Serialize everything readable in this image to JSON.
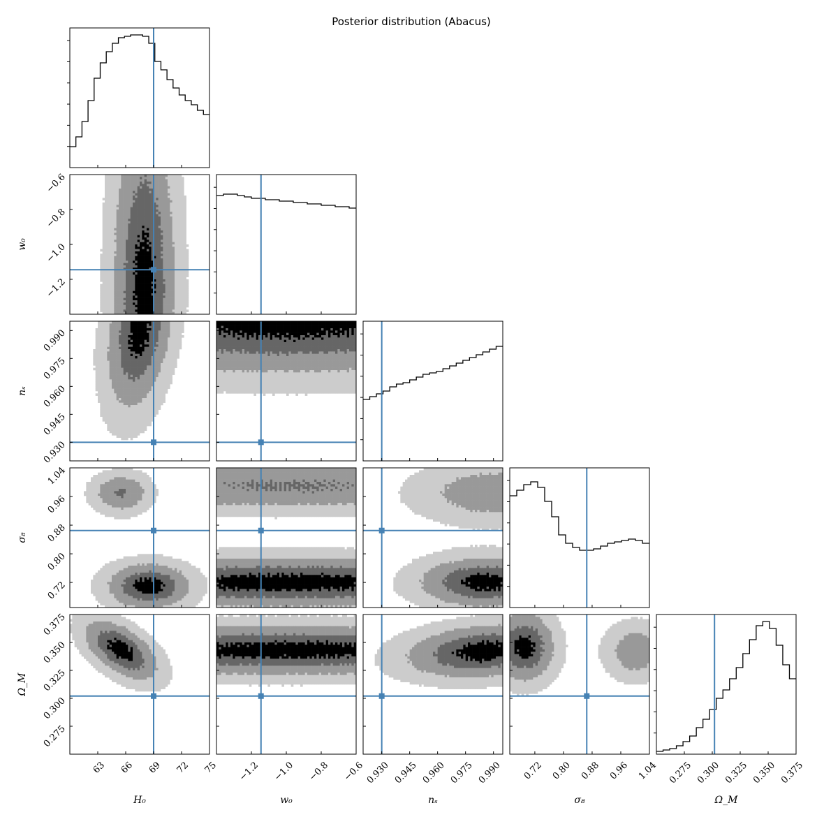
{
  "chart_data": {
    "type": "corner",
    "title": "Posterior distribution (Abacus)",
    "colors": {
      "truth": "#4682b4",
      "contour_levels": [
        "#cccccc",
        "#999999",
        "#666666",
        "#000000"
      ],
      "line": "#000000"
    },
    "params": [
      {
        "key": "H0",
        "label": "H₀",
        "range": [
          60,
          75
        ],
        "ticks": [
          63,
          66,
          69,
          72,
          75
        ],
        "tick_labels": [
          "63",
          "66",
          "69",
          "72",
          "75"
        ],
        "truth": 69.0
      },
      {
        "key": "w0",
        "label": "w₀",
        "range": [
          -1.4,
          -0.6
        ],
        "ticks": [
          -1.2,
          -1.0,
          -0.8,
          -0.6
        ],
        "tick_labels": [
          "−1.2",
          "−1.0",
          "−0.8",
          "−0.6"
        ],
        "truth": -1.145
      },
      {
        "key": "ns",
        "label": "nₛ",
        "range": [
          0.92,
          0.995
        ],
        "ticks": [
          0.93,
          0.945,
          0.96,
          0.975,
          0.99
        ],
        "tick_labels": [
          "0.930",
          "0.945",
          "0.960",
          "0.975",
          "0.990"
        ],
        "truth": 0.93
      },
      {
        "key": "s8",
        "label": "σ₈",
        "range": [
          0.65,
          1.04
        ],
        "ticks": [
          0.72,
          0.8,
          0.88,
          0.96,
          1.04
        ],
        "tick_labels": [
          "0.72",
          "0.80",
          "0.88",
          "0.96",
          "1.04"
        ],
        "truth": 0.865
      },
      {
        "key": "Om",
        "label": "Ω_M",
        "range": [
          0.25,
          0.375
        ],
        "ticks": [
          0.275,
          0.3,
          0.325,
          0.35,
          0.375
        ],
        "tick_labels": [
          "0.275",
          "0.300",
          "0.325",
          "0.350",
          "0.375"
        ],
        "truth": 0.302
      }
    ],
    "histograms": {
      "H0": [
        0.15,
        0.22,
        0.33,
        0.48,
        0.64,
        0.75,
        0.83,
        0.89,
        0.93,
        0.94,
        0.95,
        0.95,
        0.94,
        0.89,
        0.76,
        0.7,
        0.63,
        0.57,
        0.52,
        0.48,
        0.45,
        0.41,
        0.38
      ],
      "w0": [
        0.85,
        0.86,
        0.86,
        0.85,
        0.84,
        0.83,
        0.83,
        0.82,
        0.82,
        0.81,
        0.81,
        0.8,
        0.8,
        0.79,
        0.79,
        0.78,
        0.78,
        0.77,
        0.77,
        0.76
      ],
      "ns": [
        0.44,
        0.46,
        0.48,
        0.5,
        0.53,
        0.55,
        0.56,
        0.58,
        0.6,
        0.62,
        0.63,
        0.64,
        0.66,
        0.68,
        0.7,
        0.72,
        0.74,
        0.76,
        0.78,
        0.8,
        0.82
      ],
      "s8": [
        0.8,
        0.84,
        0.88,
        0.9,
        0.86,
        0.76,
        0.65,
        0.52,
        0.46,
        0.43,
        0.41,
        0.41,
        0.42,
        0.44,
        0.46,
        0.47,
        0.48,
        0.49,
        0.48,
        0.46
      ],
      "Om": [
        0.02,
        0.03,
        0.04,
        0.06,
        0.09,
        0.13,
        0.19,
        0.25,
        0.32,
        0.4,
        0.46,
        0.54,
        0.62,
        0.72,
        0.82,
        0.92,
        0.95,
        0.9,
        0.78,
        0.64,
        0.54
      ]
    },
    "blobs": {
      "w0|H0": [
        {
          "cx": 68,
          "cy": -1.25,
          "sx": 2.4,
          "sy": 0.7,
          "rho": 0,
          "w": 1
        }
      ],
      "ns|H0": [
        {
          "cx": 67.5,
          "cy": 0.99,
          "sx": 2.5,
          "sy": 0.03,
          "rho": 0.3,
          "w": 1
        }
      ],
      "ns|w0": [
        {
          "cx": -1.0,
          "cy": 0.995,
          "sx": 1.2,
          "sy": 0.02,
          "rho": 0,
          "w": 1
        }
      ],
      "s8|H0": [
        {
          "cx": 65.5,
          "cy": 0.97,
          "sx": 2.2,
          "sy": 0.04,
          "rho": 0,
          "w": 0.7
        },
        {
          "cx": 68.5,
          "cy": 0.71,
          "sx": 3.2,
          "sy": 0.045,
          "rho": 0,
          "w": 1
        }
      ],
      "s8|w0": [
        {
          "cx": -1.0,
          "cy": 0.99,
          "sx": 1.2,
          "sy": 0.05,
          "rho": 0,
          "w": 0.7
        },
        {
          "cx": -1.0,
          "cy": 0.72,
          "sx": 1.2,
          "sy": 0.05,
          "rho": 0,
          "w": 1
        }
      ],
      "s8|ns": [
        {
          "cx": 0.99,
          "cy": 0.97,
          "sx": 0.03,
          "sy": 0.06,
          "rho": 0,
          "w": 0.6
        },
        {
          "cx": 0.985,
          "cy": 0.72,
          "sx": 0.025,
          "sy": 0.05,
          "rho": 0,
          "w": 1
        }
      ],
      "Om|H0": [
        {
          "cx": 65.5,
          "cy": 0.343,
          "sx": 2.8,
          "sy": 0.019,
          "rho": -0.55,
          "w": 1
        }
      ],
      "Om|w0": [
        {
          "cx": -1.0,
          "cy": 0.343,
          "sx": 1.2,
          "sy": 0.016,
          "rho": 0,
          "w": 1
        }
      ],
      "Om|ns": [
        {
          "cx": 0.985,
          "cy": 0.342,
          "sx": 0.03,
          "sy": 0.017,
          "rho": 0.2,
          "w": 1
        }
      ],
      "Om|s8": [
        {
          "cx": 0.69,
          "cy": 0.346,
          "sx": 0.06,
          "sy": 0.022,
          "rho": 0,
          "w": 1
        },
        {
          "cx": 1.0,
          "cy": 0.342,
          "sx": 0.06,
          "sy": 0.018,
          "rho": 0,
          "w": 0.6
        }
      ]
    }
  }
}
